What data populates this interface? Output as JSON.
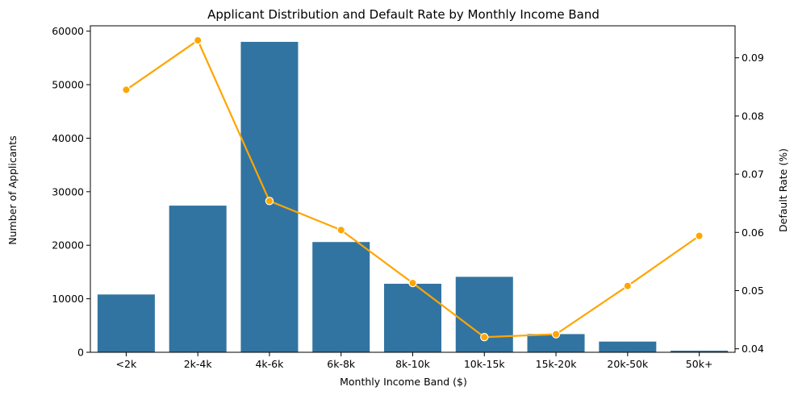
{
  "chart_data": {
    "type": "bar",
    "title": "Applicant Distribution and Default Rate by Monthly Income Band",
    "xlabel": "Monthly Income Band ($)",
    "ylabel": "Number of Applicants",
    "y2label": "Default Rate (%)",
    "categories": [
      "<2k",
      "2k-4k",
      "4k-6k",
      "6k-8k",
      "8k-10k",
      "10k-15k",
      "15k-20k",
      "20k-50k",
      "50k+"
    ],
    "series": [
      {
        "type": "bar",
        "axis": "left",
        "values": [
          10800,
          27400,
          58000,
          20600,
          12800,
          14100,
          3400,
          2000,
          300
        ],
        "color": "#3274a1"
      },
      {
        "type": "line",
        "axis": "right",
        "values": [
          0.0845,
          0.093,
          0.0654,
          0.0604,
          0.0513,
          0.042,
          0.0425,
          0.0508,
          0.0594
        ],
        "color": "#ffa500"
      }
    ],
    "ylim": [
      0,
      61000
    ],
    "yticks": [
      0,
      10000,
      20000,
      30000,
      40000,
      50000,
      60000
    ],
    "y2lim": [
      0.0394,
      0.0955
    ],
    "y2ticks": [
      0.04,
      0.05,
      0.06,
      0.07,
      0.08,
      0.09
    ],
    "grid": false,
    "legend": "none"
  }
}
